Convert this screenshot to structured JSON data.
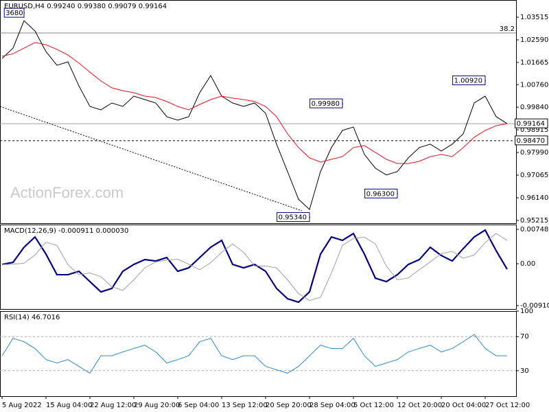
{
  "watermark": "ActionForex.com",
  "chart_data": [
    {
      "type": "line",
      "title": "EURUSD,H4  0.99240 0.99380 0.99079 0.99164",
      "categories": [
        "5 Aug 2022",
        null,
        null,
        null,
        "15 Aug 04:00",
        null,
        null,
        null,
        "22 Aug 12:00",
        null,
        null,
        null,
        "29 Aug 20:00",
        null,
        null,
        null,
        "6 Sep 04:00",
        null,
        null,
        null,
        "13 Sep 12:00",
        null,
        null,
        null,
        "20 Sep 20:00",
        null,
        null,
        null,
        "28 Sep 04:00",
        null,
        null,
        null,
        "5 Oct 12:00",
        null,
        null,
        null,
        "12 Oct 20:00",
        null,
        null,
        null,
        "20 Oct 04:00",
        null,
        null,
        null,
        "27 Oct 12:00",
        null,
        null
      ],
      "series": [
        {
          "color": "#000000",
          "values": [
            1.0183,
            1.0225,
            1.0337,
            1.0295,
            1.0211,
            1.0155,
            1.0169,
            1.0071,
            0.9987,
            0.9973,
            1.0001,
            0.9987,
            1.0029,
            1.0015,
            1.0001,
            0.9945,
            0.9931,
            0.9945,
            1.0043,
            1.0113,
            1.0029,
            1.0001,
            0.9987,
            1.0001,
            0.9959,
            0.9833,
            0.9721,
            0.9608,
            0.9566,
            0.9721,
            0.9819,
            0.9889,
            0.9903,
            0.9791,
            0.9735,
            0.9707,
            0.9721,
            0.9777,
            0.9819,
            0.9833,
            0.9805,
            0.9833,
            0.9875,
            1.0001,
            1.0029,
            0.9945,
            0.9917
          ]
        },
        {
          "color": "#e4141b",
          "values": [
            1.0192,
            1.0202,
            1.0225,
            1.0248,
            1.0239,
            1.022,
            1.0197,
            1.0164,
            1.0127,
            1.0091,
            1.0063,
            1.0051,
            1.0043,
            1.0029,
            1.0023,
            1.0007,
            0.9987,
            0.9973,
            0.9995,
            1.0015,
            1.0029,
            1.0021,
            1.0015,
            1.0007,
            0.9987,
            0.9945,
            0.9875,
            0.9819,
            0.9777,
            0.976,
            0.9771,
            0.9782,
            0.9819,
            0.9827,
            0.9799,
            0.9771,
            0.9754,
            0.9754,
            0.9763,
            0.9782,
            0.9791,
            0.9782,
            0.9819,
            0.9861,
            0.9889,
            0.9908,
            0.9917
          ]
        }
      ],
      "ylim": [
        1.04216,
        0.95103
      ],
      "yticks": [
        1.03515,
        {
          "value": 1.0259,
          "label": "1.02590"
        },
        1.01665,
        {
          "value": 1.0076,
          "label": "1.00760"
        },
        {
          "value": 0.9984,
          "label": "0.99840"
        },
        0.98915,
        {
          "value": 0.9799,
          "label": "0.97990"
        },
        0.97065,
        {
          "value": 0.9614,
          "label": "0.96140"
        },
        0.95215
      ],
      "fib_level": {
        "value": 1.0287,
        "label": "38.2"
      },
      "price_line": {
        "value": 0.99164,
        "label": "0.99164"
      },
      "support_line": {
        "value": 0.9847,
        "label": "0.98470"
      },
      "trendline": {
        "x": [
          0,
          27.3
        ],
        "y": [
          0.9987,
          0.9561
        ]
      },
      "annotations": [
        {
          "x": 2,
          "value": 1.0368,
          "label": "3680"
        },
        {
          "x": 44,
          "value": 1.0092,
          "label": "1.00920"
        },
        {
          "x": 31,
          "value": 0.9998,
          "label": "0.99980"
        },
        {
          "x": 36,
          "value": 0.963,
          "label": "0.96300"
        },
        {
          "x": 28,
          "value": 0.9534,
          "label": "0.95340"
        }
      ]
    },
    {
      "type": "macd",
      "title": "MACD(12,26,9) -0.000911 0.000030",
      "series": [
        {
          "color": "#00007f",
          "values": [
            -0.00015,
            0.0003,
            0.00359,
            0.00583,
            0.00209,
            -0.00239,
            -0.00239,
            -0.00164,
            -0.00389,
            -0.00613,
            -0.00538,
            -0.00164,
            -0.00015,
            0.0009,
            0.0006,
            0.00135,
            -0.00164,
            -0.0009,
            0.00135,
            0.00359,
            0.00508,
            -0.00015,
            -0.0009,
            -0.00015,
            -0.00164,
            -0.00538,
            -0.00762,
            -0.00837,
            -0.00613,
            0.00209,
            0.00583,
            0.00508,
            0.00658,
            0.00209,
            -0.00314,
            -0.00389,
            -0.00239,
            -0.00015,
            0.0009,
            0.00359,
            0.00179,
            0.0006,
            0.00329,
            0.00583,
            0.00733,
            0.00284,
            -0.0012
          ]
        },
        {
          "color": "#a0a0a0",
          "values": [
            -0.0002,
            -0.0001,
            0.0001,
            0.0019,
            0.0047,
            0.004,
            -0.0002,
            -0.0024,
            -0.002,
            -0.0028,
            -0.005,
            -0.0058,
            -0.0035,
            -0.0009,
            0.0004,
            0.0008,
            0.001,
            -0.0001,
            -0.0013,
            0.0002,
            0.0025,
            0.0043,
            0.0025,
            -0.0005,
            -0.0005,
            -0.0009,
            -0.0035,
            -0.0065,
            -0.008,
            -0.0073,
            -0.002,
            0.004,
            0.0055,
            0.0058,
            0.0043,
            -0.0005,
            -0.0035,
            -0.0031,
            -0.0013,
            0.0004,
            0.0022,
            0.0027,
            0.0012,
            0.0019,
            0.0046,
            0.0066,
            0.0051
          ]
        }
      ],
      "ylim": [
        0.008533,
        -0.009852
      ],
      "yticks": [
        0.007486,
        {
          "value": 0,
          "label": "0.00"
        },
        -0.009104
      ]
    },
    {
      "type": "rsi",
      "title": "RSI(14) 46.7016",
      "series": [
        {
          "color": "#2a8bd8",
          "values": [
            47.5,
            68,
            64,
            56,
            43,
            39,
            43,
            35,
            27,
            47.5,
            47.5,
            52,
            56,
            60,
            52,
            39,
            43,
            47.5,
            64,
            68,
            47.5,
            43,
            47.5,
            47.5,
            35,
            31,
            27,
            35,
            47.5,
            60,
            56,
            56,
            68,
            47.5,
            35,
            39,
            43,
            52,
            56,
            60,
            52,
            56,
            64,
            72.5,
            56,
            47.5,
            47.5
          ]
        }
      ],
      "ylim": [
        100,
        0
      ],
      "yticks": [
        100,
        70,
        30
      ],
      "levels": [
        70,
        30
      ]
    }
  ]
}
